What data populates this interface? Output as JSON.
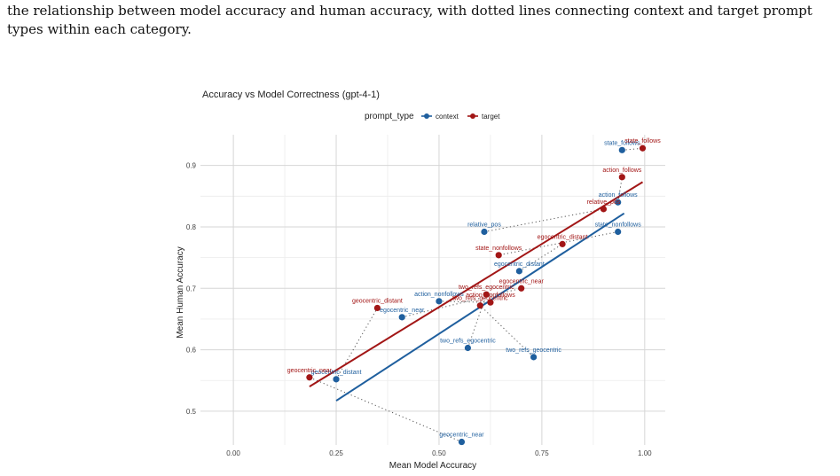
{
  "caption": "the relationship between model accuracy and human accuracy, with dotted lines connecting context and target prompt types within each category.",
  "chart_data": {
    "type": "scatter",
    "title": "Accuracy vs Model Correctness (gpt-4-1)",
    "xlabel": "Mean Model Accuracy",
    "ylabel": "Mean Human Accuracy",
    "xlim": [
      -0.08,
      1.05
    ],
    "ylim": [
      0.445,
      0.95
    ],
    "x_ticks": [
      0.0,
      0.25,
      0.5,
      0.75,
      1.0
    ],
    "x_tick_labels": [
      "0.00",
      "0.25",
      "0.50",
      "0.75",
      "1.00"
    ],
    "y_ticks": [
      0.5,
      0.6,
      0.7,
      0.8,
      0.9
    ],
    "y_tick_labels": [
      "0.5",
      "0.6",
      "0.7",
      "0.8",
      "0.9"
    ],
    "grid": true,
    "legend": {
      "title": "prompt_type",
      "placement": "top",
      "entries": [
        {
          "name": "context",
          "color": "#1f5f9e"
        },
        {
          "name": "target",
          "color": "#a21616"
        }
      ]
    },
    "series": [
      {
        "name": "context",
        "color": "#1f5f9e",
        "points": [
          {
            "label": "state_follows",
            "x": 0.945,
            "y": 0.925
          },
          {
            "label": "action_follows",
            "x": 0.935,
            "y": 0.84
          },
          {
            "label": "state_nonfollows",
            "x": 0.935,
            "y": 0.792
          },
          {
            "label": "relative_pos",
            "x": 0.61,
            "y": 0.792
          },
          {
            "label": "egocentric_distant",
            "x": 0.695,
            "y": 0.728
          },
          {
            "label": "action_nonfollows",
            "x": 0.5,
            "y": 0.679
          },
          {
            "label": "two_refs_egocentric",
            "x": 0.57,
            "y": 0.603
          },
          {
            "label": "two_refs_geocentric",
            "x": 0.73,
            "y": 0.588
          },
          {
            "label": "egocentric_near",
            "x": 0.41,
            "y": 0.653
          },
          {
            "label": "geocentric_distant",
            "x": 0.25,
            "y": 0.552
          },
          {
            "label": "geocentric_near",
            "x": 0.555,
            "y": 0.45
          }
        ],
        "fit": {
          "x": [
            0.25,
            0.95
          ],
          "y": [
            0.517,
            0.822
          ]
        }
      },
      {
        "name": "target",
        "color": "#a21616",
        "points": [
          {
            "label": "state_follows",
            "x": 0.995,
            "y": 0.928
          },
          {
            "label": "action_follows",
            "x": 0.945,
            "y": 0.881
          },
          {
            "label": "relative_pos",
            "x": 0.9,
            "y": 0.829
          },
          {
            "label": "egocentric_distant",
            "x": 0.8,
            "y": 0.772
          },
          {
            "label": "state_nonfollows",
            "x": 0.645,
            "y": 0.754
          },
          {
            "label": "egocentric_near",
            "x": 0.7,
            "y": 0.7
          },
          {
            "label": "two_refs_geocentric",
            "x": 0.6,
            "y": 0.672
          },
          {
            "label": "two_refs_egocentric",
            "x": 0.615,
            "y": 0.69
          },
          {
            "label": "action_nonfollows",
            "x": 0.625,
            "y": 0.677
          },
          {
            "label": "geocentric_distant",
            "x": 0.35,
            "y": 0.668
          },
          {
            "label": "geocentric_near",
            "x": 0.185,
            "y": 0.555
          }
        ],
        "fit": {
          "x": [
            0.185,
            0.995
          ],
          "y": [
            0.54,
            0.873
          ]
        }
      }
    ]
  }
}
